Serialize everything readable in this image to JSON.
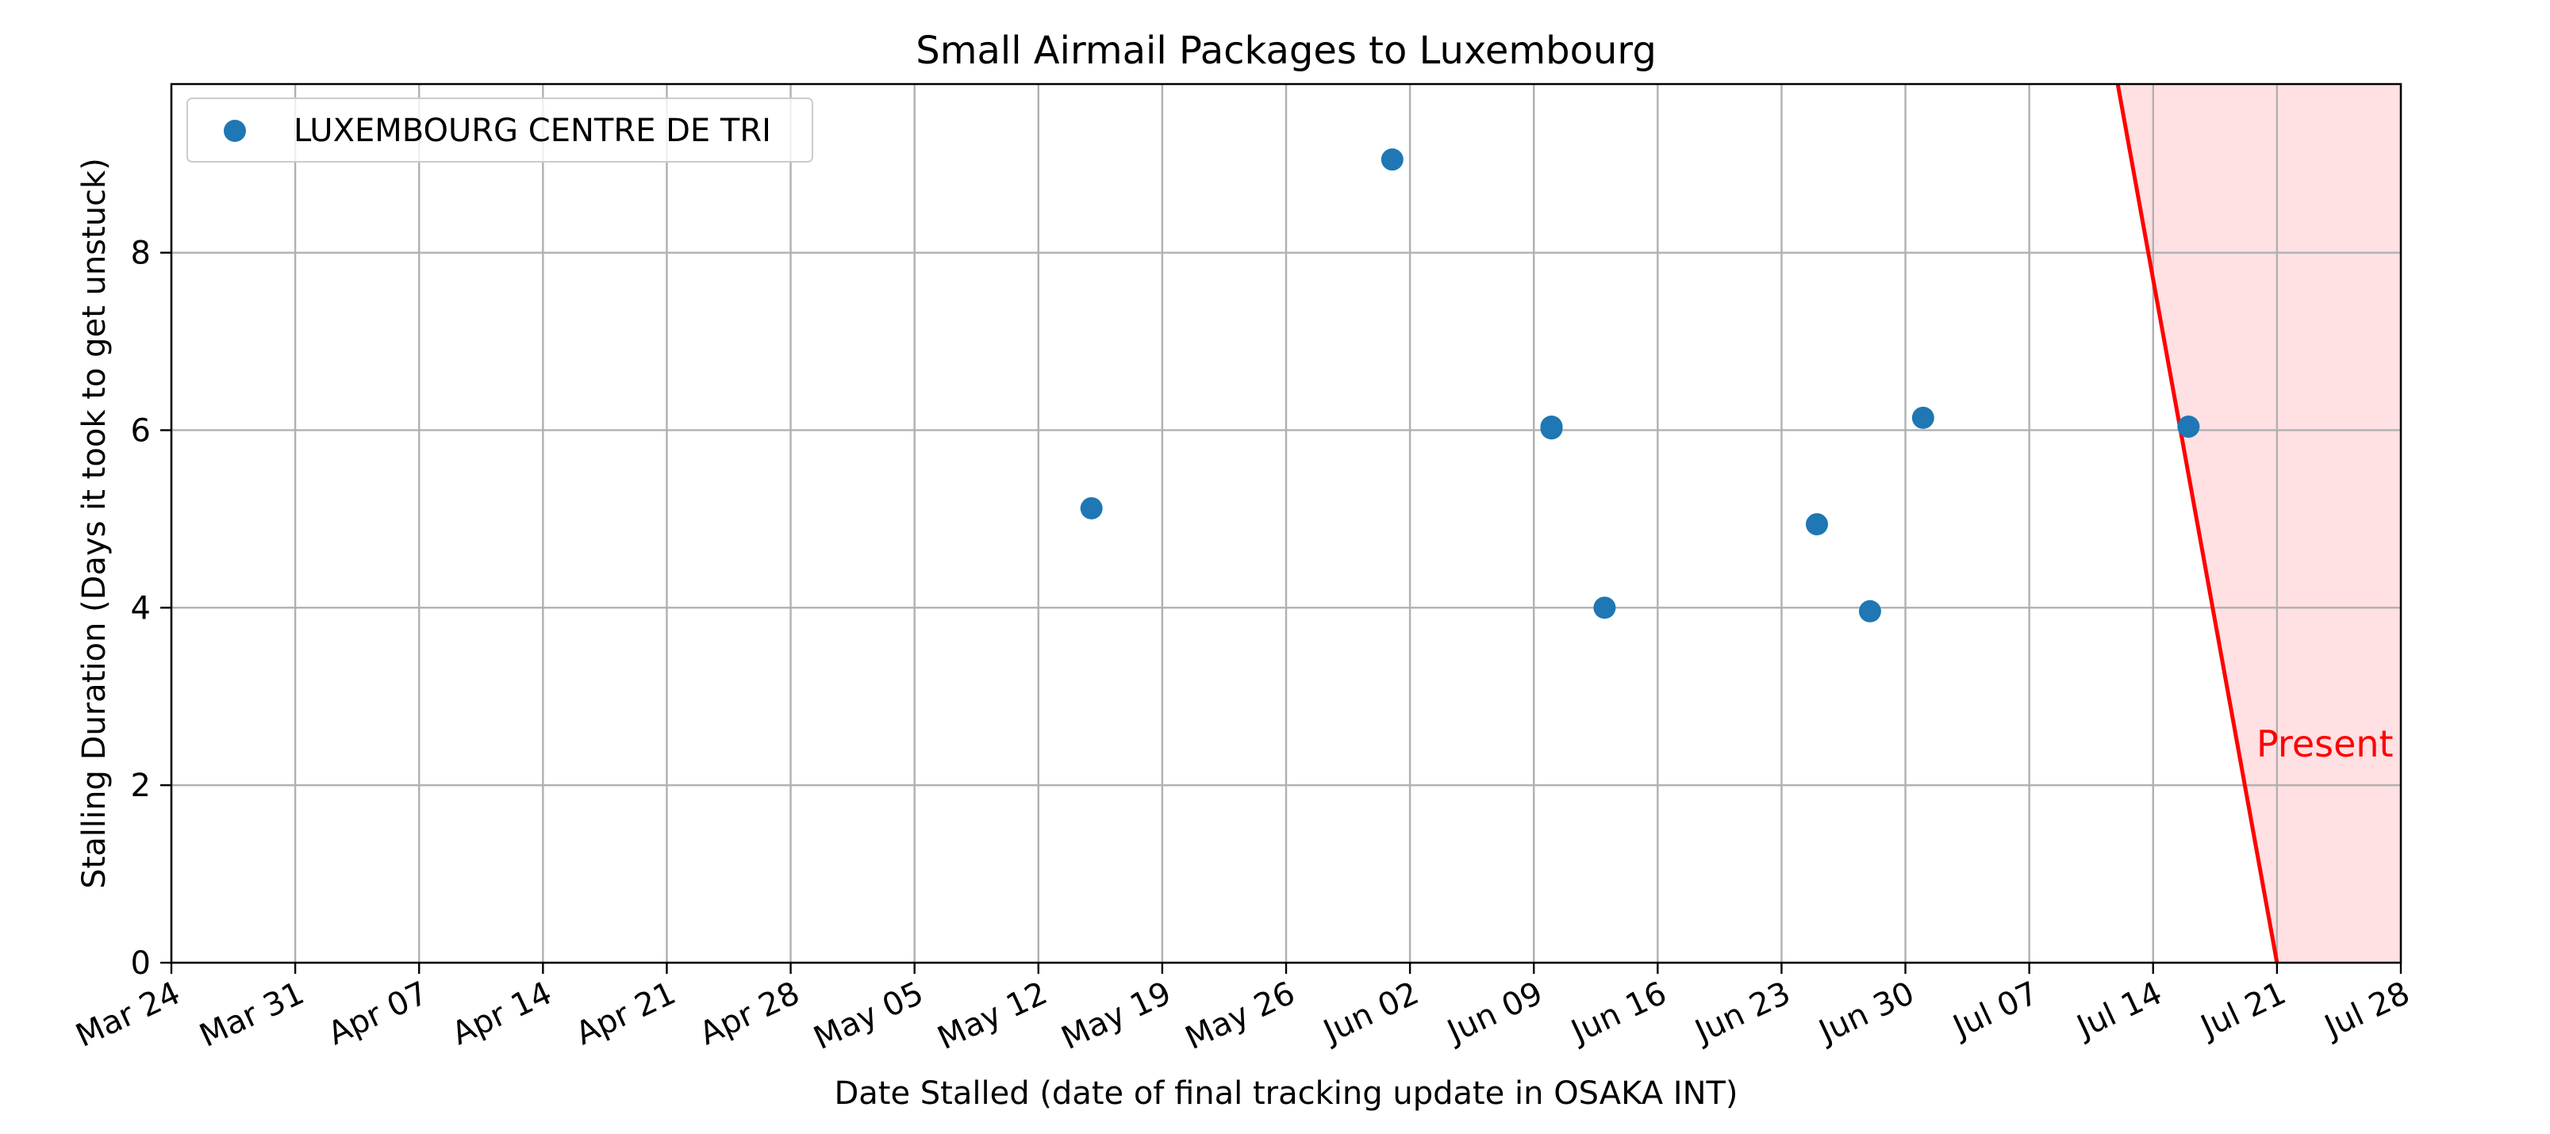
{
  "chart_data": {
    "type": "scatter",
    "title": "Small Airmail Packages to Luxembourg",
    "xlabel": "Date Stalled (date of final tracking update in OSAKA INT)",
    "ylabel": "Stalling Duration (Days it took to get unstuck)",
    "xlim": [
      "Mar 24",
      "Jul 28"
    ],
    "ylim": [
      0,
      9.9
    ],
    "x_ticks": [
      "Mar 24",
      "Mar 31",
      "Apr 07",
      "Apr 14",
      "Apr 21",
      "Apr 28",
      "May 05",
      "May 12",
      "May 19",
      "May 26",
      "Jun 02",
      "Jun 09",
      "Jun 16",
      "Jun 23",
      "Jun 30",
      "Jul 07",
      "Jul 14",
      "Jul 21",
      "Jul 28"
    ],
    "y_ticks": [
      0,
      2,
      4,
      6,
      8
    ],
    "grid": true,
    "legend_position": "top-left",
    "series": [
      {
        "name": "LUXEMBOURG CENTRE DE TRI",
        "color": "#1f77b4",
        "points": [
          {
            "x": "May 15",
            "y": 5.12
          },
          {
            "x": "Jun 01",
            "y": 9.05
          },
          {
            "x": "Jun 10",
            "y": 6.04
          },
          {
            "x": "Jun 10",
            "y": 6.02
          },
          {
            "x": "Jun 13",
            "y": 4.0
          },
          {
            "x": "Jun 25",
            "y": 4.94
          },
          {
            "x": "Jun 28",
            "y": 3.96
          },
          {
            "x": "Jul 01",
            "y": 6.14
          },
          {
            "x": "Jul 16",
            "y": 6.04
          }
        ]
      }
    ],
    "present_line": {
      "label": "Present",
      "color": "#ff0000",
      "fill_color": "#ffe0e3",
      "top": {
        "x": "Jul 12",
        "y": 9.9
      },
      "bottom": {
        "x": "Jul 21",
        "y": 0
      }
    }
  }
}
